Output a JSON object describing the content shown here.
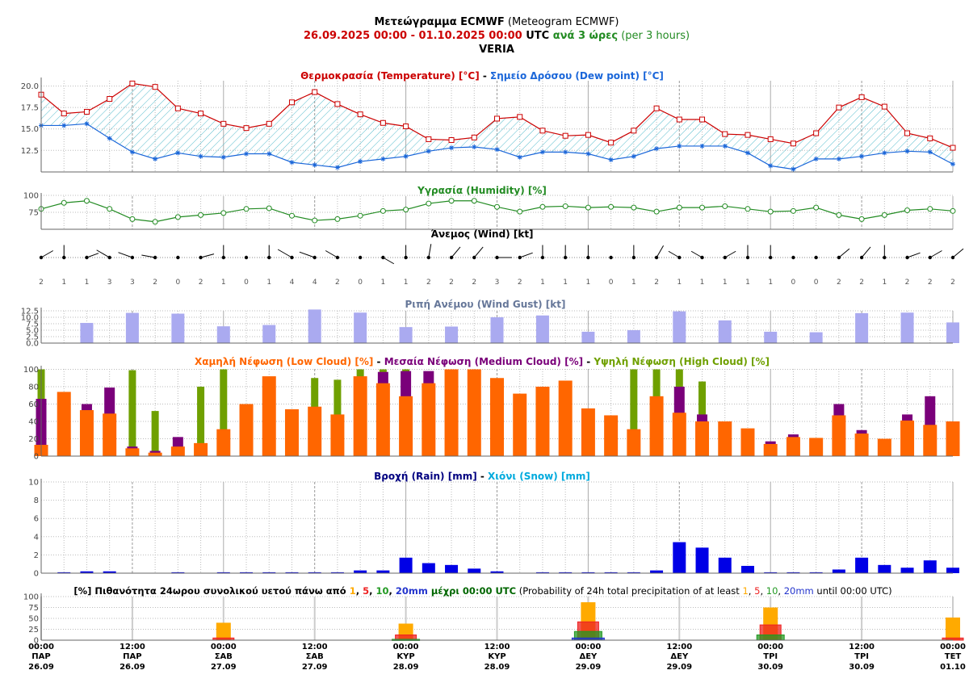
{
  "header": {
    "line1_bold": "Μετεώγραμμα ECMWF",
    "line1_rest": " (Meteogram ECMWF)",
    "line2_range": "26.09.2025 00:00 - 01.10.2025 00:00",
    "line2_utc": " UTC ",
    "line2_every": "ανά 3 ώρες",
    "line2_per": " (per 3 hours)",
    "location": "VERIA"
  },
  "colors": {
    "temperature": "#cc0000",
    "dewpoint": "#1a66d9",
    "humidity": "#228b22",
    "gust": "#aaaaf0",
    "low_cloud": "#ff6600",
    "medium_cloud": "#7a007a",
    "high_cloud": "#6fa000",
    "rain": "#0000e6",
    "snow": "#00aadd",
    "prob1": "#ffaa00",
    "prob5": "#ee2222",
    "prob10": "#229922",
    "prob20": "#2233cc"
  },
  "chart_data": [
    {
      "type": "line",
      "title_a": "Θερμοκρασία (Temperature) [°C]",
      "title_sep": " - ",
      "title_b": "Σημείο Δρόσου (Dew point) [°C]",
      "yticks": [
        "20.0",
        "17.5",
        "15.0",
        "12.5"
      ],
      "ylim": [
        10.0,
        21.0
      ],
      "series": [
        {
          "name": "Temperature",
          "values": [
            19.0,
            16.8,
            17.0,
            18.5,
            20.3,
            19.9,
            17.4,
            16.8,
            15.6,
            15.1,
            15.6,
            18.1,
            19.3,
            17.9,
            16.7,
            15.7,
            15.3,
            13.8,
            13.7,
            14.0,
            16.2,
            16.4,
            14.8,
            14.2,
            14.3,
            13.4,
            14.8,
            17.4,
            16.1,
            16.1,
            14.4,
            14.3,
            13.8,
            13.3,
            14.5,
            17.5,
            18.7,
            17.6,
            14.5,
            13.9,
            12.8
          ]
        },
        {
          "name": "Dew point",
          "values": [
            15.4,
            15.4,
            15.6,
            13.9,
            12.3,
            11.5,
            12.2,
            11.8,
            11.7,
            12.1,
            12.1,
            11.1,
            10.8,
            10.5,
            11.2,
            11.5,
            11.8,
            12.4,
            12.8,
            12.9,
            12.6,
            11.7,
            12.3,
            12.3,
            12.1,
            11.4,
            11.8,
            12.7,
            13.0,
            13.0,
            13.0,
            12.2,
            10.7,
            10.3,
            11.5,
            11.5,
            11.8,
            12.2,
            12.4,
            12.3,
            10.9
          ]
        }
      ]
    },
    {
      "type": "line",
      "title": "Υγρασία (Humidity) [%]",
      "yticks": [
        "100",
        "75"
      ],
      "ylim": [
        50,
        100
      ],
      "series": [
        {
          "name": "Humidity",
          "values": [
            80,
            89,
            92,
            80,
            65,
            61,
            68,
            71,
            74,
            80,
            81,
            70,
            63,
            65,
            70,
            77,
            79,
            88,
            92,
            92,
            83,
            76,
            83,
            84,
            82,
            83,
            82,
            76,
            82,
            82,
            84,
            80,
            76,
            77,
            82,
            71,
            65,
            71,
            78,
            80,
            77
          ]
        }
      ]
    },
    {
      "type": "scatter",
      "title": "Άνεμος (Wind) [kt]",
      "speeds": [
        2,
        1,
        1,
        3,
        3,
        2,
        0,
        2,
        1,
        0,
        1,
        4,
        4,
        2,
        0,
        1,
        1,
        2,
        2,
        2,
        3,
        2,
        1,
        1,
        1,
        0,
        1,
        2,
        1,
        1,
        1,
        1,
        1,
        0,
        0,
        2,
        2,
        1,
        2,
        2,
        2
      ],
      "directions_deg": [
        60,
        0,
        70,
        300,
        290,
        280,
        0,
        75,
        0,
        0,
        0,
        300,
        290,
        300,
        0,
        120,
        0,
        10,
        40,
        40,
        90,
        70,
        0,
        0,
        0,
        0,
        0,
        30,
        300,
        300,
        60,
        0,
        0,
        0,
        0,
        50,
        40,
        0,
        70,
        60,
        50
      ]
    },
    {
      "type": "bar",
      "title": "Ριπή Ανέμου (Wind Gust) [kt]",
      "yticks": [
        "12.5",
        "10.0",
        "7.5",
        "5.0",
        "2.5",
        "0.0"
      ],
      "ylim": [
        0,
        12.5
      ],
      "values": [
        0,
        0,
        7.8,
        0,
        11.7,
        0,
        11.4,
        0,
        6.5,
        0,
        7.0,
        0,
        13.0,
        0,
        11.8,
        0,
        6.2,
        0,
        6.4,
        0,
        10.0,
        0,
        10.7,
        0,
        4.4,
        0,
        5.0,
        0,
        12.3,
        0,
        8.8,
        0,
        4.4,
        0,
        4.2,
        0,
        11.6,
        0,
        11.8,
        0,
        8.0
      ]
    },
    {
      "type": "bar",
      "title_low": "Χαμηλή Νέφωση (Low Cloud) [%]",
      "title_med": "Μεσαία Νέφωση (Medium Cloud) [%]",
      "title_high": "Υψηλή Νέφωση (High Cloud) [%]",
      "title_sep": " - ",
      "yticks": [
        "100",
        "80",
        "60",
        "40",
        "20",
        "0"
      ],
      "ylim": [
        0,
        100
      ],
      "series": [
        {
          "name": "High Cloud",
          "values": [
            100,
            0,
            0,
            0,
            99,
            52,
            0,
            80,
            100,
            0,
            0,
            0,
            90,
            88,
            100,
            100,
            100,
            0,
            0,
            0,
            0,
            0,
            0,
            0,
            0,
            0,
            100,
            100,
            100,
            86,
            0,
            0,
            0,
            0,
            0,
            0,
            0,
            0,
            0,
            0,
            0
          ]
        },
        {
          "name": "Medium Cloud",
          "values": [
            66,
            0,
            60,
            79,
            11,
            6,
            22,
            0,
            0,
            0,
            0,
            0,
            0,
            0,
            0,
            97,
            98,
            98,
            0,
            0,
            0,
            0,
            0,
            0,
            0,
            0,
            0,
            0,
            80,
            48,
            0,
            0,
            17,
            25,
            0,
            60,
            30,
            0,
            48,
            69,
            0
          ]
        },
        {
          "name": "Low Cloud",
          "values": [
            13,
            74,
            53,
            49,
            9,
            4,
            11,
            15,
            31,
            60,
            92,
            54,
            57,
            48,
            92,
            84,
            69,
            84,
            100,
            100,
            90,
            72,
            80,
            87,
            55,
            47,
            31,
            69,
            50,
            40,
            40,
            32,
            14,
            22,
            21,
            47,
            26,
            20,
            41,
            36,
            40
          ]
        }
      ]
    },
    {
      "type": "bar",
      "title_rain": "Βροχή (Rain) [mm]",
      "title_sep": " - ",
      "title_snow": "Χιόνι (Snow) [mm]",
      "yticks": [
        "10",
        "8",
        "6",
        "4",
        "2",
        "0"
      ],
      "ylim": [
        0,
        10
      ],
      "series": [
        {
          "name": "Rain",
          "values": [
            0,
            0.1,
            0.2,
            0.2,
            0,
            0,
            0.1,
            0,
            0.1,
            0.1,
            0.1,
            0.1,
            0.1,
            0.1,
            0.3,
            0.3,
            1.7,
            1.1,
            0.9,
            0.5,
            0.2,
            0,
            0.1,
            0.1,
            0.1,
            0.1,
            0.1,
            0.3,
            3.4,
            2.8,
            1.7,
            0.8,
            0.1,
            0.1,
            0.1,
            0.4,
            1.7,
            0.9,
            0.6,
            1.4,
            0.6
          ]
        }
      ]
    },
    {
      "type": "bar",
      "title_pre": "[%] Πιθανότητα 24ωρου συνολικού υετού πάνω από ",
      "title_mid": " μέχρι 00:00 UTC",
      "title_en_pre": " (Probability of 24h total precipitation of at least ",
      "title_en_mid": " until 00:00 UTC)",
      "title_comma": ", ",
      "title_1": "1",
      "title_5": "5",
      "title_10": "10",
      "title_20": "20mm",
      "yticks": [
        "100",
        "75",
        "50",
        "25",
        "0"
      ],
      "ylim": [
        0,
        100
      ],
      "categories": [
        "27.09",
        "28.09",
        "29.09",
        "30.09",
        "01.10"
      ],
      "series": [
        {
          "name": "1",
          "values": [
            40,
            38,
            87,
            75,
            52
          ]
        },
        {
          "name": "5",
          "values": [
            5,
            12,
            42,
            35,
            5
          ]
        },
        {
          "name": "10",
          "values": [
            0,
            2,
            20,
            12,
            0
          ]
        },
        {
          "name": "20",
          "values": [
            0,
            0,
            5,
            0,
            0
          ]
        }
      ]
    }
  ],
  "x_axis": {
    "labels": [
      {
        "time": "00:00",
        "day": "ΠΑΡ",
        "date": "26.09"
      },
      {
        "time": "12:00",
        "day": "ΠΑΡ",
        "date": "26.09"
      },
      {
        "time": "00:00",
        "day": "ΣΑΒ",
        "date": "27.09"
      },
      {
        "time": "12:00",
        "day": "ΣΑΒ",
        "date": "27.09"
      },
      {
        "time": "00:00",
        "day": "ΚΥΡ",
        "date": "28.09"
      },
      {
        "time": "12:00",
        "day": "ΚΥΡ",
        "date": "28.09"
      },
      {
        "time": "00:00",
        "day": "ΔΕΥ",
        "date": "29.09"
      },
      {
        "time": "12:00",
        "day": "ΔΕΥ",
        "date": "29.09"
      },
      {
        "time": "00:00",
        "day": "ΤΡΙ",
        "date": "30.09"
      },
      {
        "time": "12:00",
        "day": "ΤΡΙ",
        "date": "30.09"
      },
      {
        "time": "00:00",
        "day": "ΤΕΤ",
        "date": "01.10"
      }
    ]
  }
}
